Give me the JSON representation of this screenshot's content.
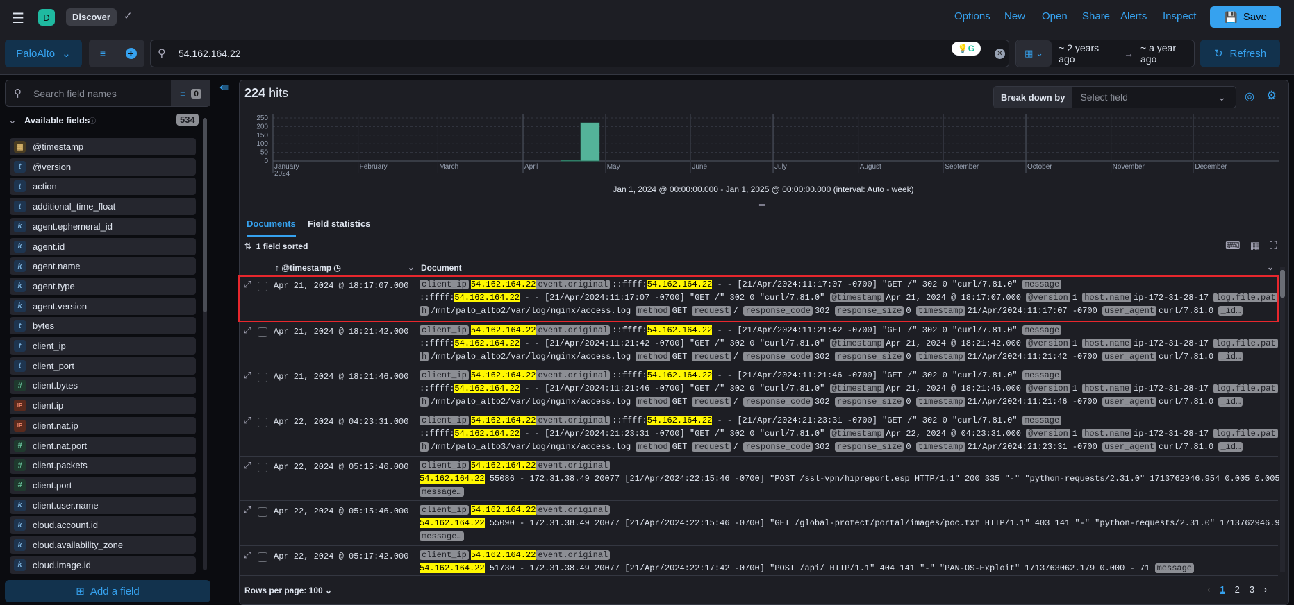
{
  "app": {
    "logo_letter": "D",
    "breadcrumb": "Discover"
  },
  "header_links": [
    "Options",
    "New",
    "Open",
    "Share",
    "Alerts",
    "Inspect"
  ],
  "save_label": "Save",
  "data_view": "PaloAlto",
  "query": "54.162.164.22",
  "date": {
    "start": "~ 2 years ago",
    "end": "~ a year ago"
  },
  "refresh_label": "Refresh",
  "sidebar": {
    "search_placeholder": "Search field names",
    "filter_count": "0",
    "section_title": "Available fields",
    "field_count": "534",
    "add_field": "Add a field",
    "fields": [
      [
        "d",
        "@timestamp"
      ],
      [
        "t",
        "@version"
      ],
      [
        "t",
        "action"
      ],
      [
        "t",
        "additional_time_float"
      ],
      [
        "k",
        "agent.ephemeral_id"
      ],
      [
        "k",
        "agent.id"
      ],
      [
        "k",
        "agent.name"
      ],
      [
        "k",
        "agent.type"
      ],
      [
        "k",
        "agent.version"
      ],
      [
        "t",
        "bytes"
      ],
      [
        "t",
        "client_ip"
      ],
      [
        "t",
        "client_port"
      ],
      [
        "n",
        "client.bytes"
      ],
      [
        "ip",
        "client.ip"
      ],
      [
        "ip",
        "client.nat.ip"
      ],
      [
        "n",
        "client.nat.port"
      ],
      [
        "n",
        "client.packets"
      ],
      [
        "n",
        "client.port"
      ],
      [
        "k",
        "client.user.name"
      ],
      [
        "k",
        "cloud.account.id"
      ],
      [
        "k",
        "cloud.availability_zone"
      ],
      [
        "k",
        "cloud.image.id"
      ]
    ]
  },
  "hits": {
    "count": "224",
    "label": "hits"
  },
  "breakdown": {
    "label": "Break down by",
    "placeholder": "Select field"
  },
  "chart_data": {
    "type": "bar",
    "x_ticks": [
      "January",
      "February",
      "March",
      "April",
      "May",
      "June",
      "July",
      "August",
      "September",
      "October",
      "November",
      "December"
    ],
    "x_year": "2024",
    "y_ticks": [
      "250",
      "200",
      "150",
      "100",
      "50",
      "0"
    ],
    "ylim": [
      0,
      250
    ],
    "grid": true,
    "interval": "week",
    "bars": [
      {
        "x": "2024-04-15",
        "y": 3
      },
      {
        "x": "2024-04-22",
        "y": 221
      }
    ],
    "bar_color": "#54b399",
    "caption": "Jan 1, 2024 @ 00:00:00.000 - Jan 1, 2025 @ 00:00:00.000 (interval: Auto - week)"
  },
  "tabs": [
    "Documents",
    "Field statistics"
  ],
  "sorted_label": "1 field sorted",
  "table": {
    "col_timestamp": "@timestamp",
    "col_document": "Document",
    "rows": [
      {
        "ts": "Apr 21, 2024 @ 18:17:07.000",
        "lines": [
          [
            [
              "k",
              "client_ip"
            ],
            [
              "h",
              "54.162.164.22"
            ],
            [
              "k",
              "event.original"
            ],
            [
              "t",
              "::ffff:"
            ],
            [
              "h",
              "54.162.164.22"
            ],
            [
              "t",
              " - - [21/Apr/2024:11:17:07 -0700] \"GET /\" 302 0 \"curl/7.81.0\" "
            ],
            [
              "k",
              "message"
            ]
          ],
          [
            [
              "t",
              "::ffff:"
            ],
            [
              "h",
              "54.162.164.22"
            ],
            [
              "t",
              " - - [21/Apr/2024:11:17:07 -0700] \"GET /\" 302 0 \"curl/7.81.0\" "
            ],
            [
              "k",
              "@timestamp"
            ],
            [
              "t",
              "Apr 21, 2024 @ 18:17:07.000 "
            ],
            [
              "k",
              "@version"
            ],
            [
              "t",
              "1 "
            ],
            [
              "k",
              "host.name"
            ],
            [
              "t",
              "ip-172-31-28-17 "
            ],
            [
              "k",
              "log.file.pat"
            ]
          ],
          [
            [
              "k",
              "h"
            ],
            [
              "t",
              "/mnt/palo_alto2/var/log/nginx/access.log "
            ],
            [
              "k",
              "method"
            ],
            [
              "t",
              "GET "
            ],
            [
              "k",
              "request"
            ],
            [
              "t",
              "/ "
            ],
            [
              "k",
              "response_code"
            ],
            [
              "t",
              "302 "
            ],
            [
              "k",
              "response_size"
            ],
            [
              "t",
              "0 "
            ],
            [
              "k",
              "timestamp"
            ],
            [
              "t",
              "21/Apr/2024:11:17:07 -0700 "
            ],
            [
              "k",
              "user_agent"
            ],
            [
              "t",
              "curl/7.81.0 "
            ],
            [
              "k",
              "_id…"
            ]
          ]
        ]
      },
      {
        "ts": "Apr 21, 2024 @ 18:21:42.000",
        "lines": [
          [
            [
              "k",
              "client_ip"
            ],
            [
              "h",
              "54.162.164.22"
            ],
            [
              "k",
              "event.original"
            ],
            [
              "t",
              "::ffff:"
            ],
            [
              "h",
              "54.162.164.22"
            ],
            [
              "t",
              " - - [21/Apr/2024:11:21:42 -0700] \"GET /\" 302 0 \"curl/7.81.0\" "
            ],
            [
              "k",
              "message"
            ]
          ],
          [
            [
              "t",
              "::ffff:"
            ],
            [
              "h",
              "54.162.164.22"
            ],
            [
              "t",
              " - - [21/Apr/2024:11:21:42 -0700] \"GET /\" 302 0 \"curl/7.81.0\" "
            ],
            [
              "k",
              "@timestamp"
            ],
            [
              "t",
              "Apr 21, 2024 @ 18:21:42.000 "
            ],
            [
              "k",
              "@version"
            ],
            [
              "t",
              "1 "
            ],
            [
              "k",
              "host.name"
            ],
            [
              "t",
              "ip-172-31-28-17 "
            ],
            [
              "k",
              "log.file.pat"
            ]
          ],
          [
            [
              "k",
              "h"
            ],
            [
              "t",
              "/mnt/palo_alto2/var/log/nginx/access.log "
            ],
            [
              "k",
              "method"
            ],
            [
              "t",
              "GET "
            ],
            [
              "k",
              "request"
            ],
            [
              "t",
              "/ "
            ],
            [
              "k",
              "response_code"
            ],
            [
              "t",
              "302 "
            ],
            [
              "k",
              "response_size"
            ],
            [
              "t",
              "0 "
            ],
            [
              "k",
              "timestamp"
            ],
            [
              "t",
              "21/Apr/2024:11:21:42 -0700 "
            ],
            [
              "k",
              "user_agent"
            ],
            [
              "t",
              "curl/7.81.0 "
            ],
            [
              "k",
              "_id…"
            ]
          ]
        ]
      },
      {
        "ts": "Apr 21, 2024 @ 18:21:46.000",
        "lines": [
          [
            [
              "k",
              "client_ip"
            ],
            [
              "h",
              "54.162.164.22"
            ],
            [
              "k",
              "event.original"
            ],
            [
              "t",
              "::ffff:"
            ],
            [
              "h",
              "54.162.164.22"
            ],
            [
              "t",
              " - - [21/Apr/2024:11:21:46 -0700] \"GET /\" 302 0 \"curl/7.81.0\" "
            ],
            [
              "k",
              "message"
            ]
          ],
          [
            [
              "t",
              "::ffff:"
            ],
            [
              "h",
              "54.162.164.22"
            ],
            [
              "t",
              " - - [21/Apr/2024:11:21:46 -0700] \"GET /\" 302 0 \"curl/7.81.0\" "
            ],
            [
              "k",
              "@timestamp"
            ],
            [
              "t",
              "Apr 21, 2024 @ 18:21:46.000 "
            ],
            [
              "k",
              "@version"
            ],
            [
              "t",
              "1 "
            ],
            [
              "k",
              "host.name"
            ],
            [
              "t",
              "ip-172-31-28-17 "
            ],
            [
              "k",
              "log.file.pat"
            ]
          ],
          [
            [
              "k",
              "h"
            ],
            [
              "t",
              "/mnt/palo_alto2/var/log/nginx/access.log "
            ],
            [
              "k",
              "method"
            ],
            [
              "t",
              "GET "
            ],
            [
              "k",
              "request"
            ],
            [
              "t",
              "/ "
            ],
            [
              "k",
              "response_code"
            ],
            [
              "t",
              "302 "
            ],
            [
              "k",
              "response_size"
            ],
            [
              "t",
              "0 "
            ],
            [
              "k",
              "timestamp"
            ],
            [
              "t",
              "21/Apr/2024:11:21:46 -0700 "
            ],
            [
              "k",
              "user_agent"
            ],
            [
              "t",
              "curl/7.81.0 "
            ],
            [
              "k",
              "_id…"
            ]
          ]
        ]
      },
      {
        "ts": "Apr 22, 2024 @ 04:23:31.000",
        "lines": [
          [
            [
              "k",
              "client_ip"
            ],
            [
              "h",
              "54.162.164.22"
            ],
            [
              "k",
              "event.original"
            ],
            [
              "t",
              "::ffff:"
            ],
            [
              "h",
              "54.162.164.22"
            ],
            [
              "t",
              " - - [21/Apr/2024:21:23:31 -0700] \"GET /\" 302 0 \"curl/7.81.0\" "
            ],
            [
              "k",
              "message"
            ]
          ],
          [
            [
              "t",
              "::ffff:"
            ],
            [
              "h",
              "54.162.164.22"
            ],
            [
              "t",
              " - - [21/Apr/2024:21:23:31 -0700] \"GET /\" 302 0 \"curl/7.81.0\" "
            ],
            [
              "k",
              "@timestamp"
            ],
            [
              "t",
              "Apr 22, 2024 @ 04:23:31.000 "
            ],
            [
              "k",
              "@version"
            ],
            [
              "t",
              "1 "
            ],
            [
              "k",
              "host.name"
            ],
            [
              "t",
              "ip-172-31-28-17 "
            ],
            [
              "k",
              "log.file.pat"
            ]
          ],
          [
            [
              "k",
              "h"
            ],
            [
              "t",
              "/mnt/palo_alto3/var/log/nginx/access.log "
            ],
            [
              "k",
              "method"
            ],
            [
              "t",
              "GET "
            ],
            [
              "k",
              "request"
            ],
            [
              "t",
              "/ "
            ],
            [
              "k",
              "response_code"
            ],
            [
              "t",
              "302 "
            ],
            [
              "k",
              "response_size"
            ],
            [
              "t",
              "0 "
            ],
            [
              "k",
              "timestamp"
            ],
            [
              "t",
              "21/Apr/2024:21:23:31 -0700 "
            ],
            [
              "k",
              "user_agent"
            ],
            [
              "t",
              "curl/7.81.0 "
            ],
            [
              "k",
              "_id…"
            ]
          ]
        ]
      },
      {
        "ts": "Apr 22, 2024 @ 05:15:46.000",
        "lines": [
          [
            [
              "k",
              "client_ip"
            ],
            [
              "h",
              "54.162.164.22"
            ],
            [
              "k",
              "event.original"
            ]
          ],
          [
            [
              "h",
              "54.162.164.22"
            ],
            [
              "t",
              " 55086 - 172.31.38.49 20077 [21/Apr/2024:22:15:46 -0700] \"POST /ssl-vpn/hipreport.esp HTTP/1.1\" 200 335 \"-\" \"python-requests/2.31.0\" 1713762946.954 0.005 0.005"
            ]
          ],
          [
            [
              "k",
              "message…"
            ]
          ]
        ]
      },
      {
        "ts": "Apr 22, 2024 @ 05:15:46.000",
        "lines": [
          [
            [
              "k",
              "client_ip"
            ],
            [
              "h",
              "54.162.164.22"
            ],
            [
              "k",
              "event.original"
            ]
          ],
          [
            [
              "h",
              "54.162.164.22"
            ],
            [
              "t",
              " 55090 - 172.31.38.49 20077 [21/Apr/2024:22:15:46 -0700] \"GET /global-protect/portal/images/poc.txt HTTP/1.1\" 403 141 \"-\" \"python-requests/2.31.0\" 1713762946.9"
            ]
          ],
          [
            [
              "k",
              "message…"
            ]
          ]
        ]
      },
      {
        "ts": "Apr 22, 2024 @ 05:17:42.000",
        "lines": [
          [
            [
              "k",
              "client_ip"
            ],
            [
              "h",
              "54.162.164.22"
            ],
            [
              "k",
              "event.original"
            ]
          ],
          [
            [
              "h",
              "54.162.164.22"
            ],
            [
              "t",
              " 51730 - 172.31.38.49 20077 [21/Apr/2024:22:17:42 -0700] \"POST /api/ HTTP/1.1\" 404 141 \"-\" \"PAN-OS-Exploit\" 1713763062.179 0.000 - 71 "
            ],
            [
              "k",
              "message"
            ]
          ]
        ]
      }
    ]
  },
  "footer": {
    "rows_per_page": "Rows per page: 100",
    "pages": [
      "1",
      "2",
      "3"
    ]
  },
  "colors": {
    "accent": "#36a2ef",
    "highlight": "#fff700",
    "selection_border": "#e7272d"
  }
}
